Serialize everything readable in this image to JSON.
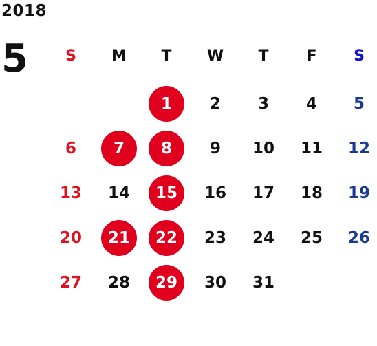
{
  "calendar": {
    "year": "2018",
    "month": "5",
    "weekday_headers": [
      "S",
      "M",
      "T",
      "W",
      "T",
      "F",
      "S"
    ],
    "colors": {
      "sunday": "#e0101e",
      "saturday": "#1a3a8f",
      "saturday_header": "#1010d0",
      "weekday": "#111111",
      "holiday_circle": "#e0001e",
      "holiday_text": "#ffffff"
    },
    "weeks": [
      [
        null,
        null,
        {
          "day": "1",
          "holiday": true
        },
        {
          "day": "2"
        },
        {
          "day": "3"
        },
        {
          "day": "4"
        },
        {
          "day": "5"
        }
      ],
      [
        {
          "day": "6"
        },
        {
          "day": "7",
          "holiday": true
        },
        {
          "day": "8",
          "holiday": true
        },
        {
          "day": "9"
        },
        {
          "day": "10"
        },
        {
          "day": "11"
        },
        {
          "day": "12"
        }
      ],
      [
        {
          "day": "13"
        },
        {
          "day": "14"
        },
        {
          "day": "15",
          "holiday": true
        },
        {
          "day": "16"
        },
        {
          "day": "17"
        },
        {
          "day": "18"
        },
        {
          "day": "19"
        }
      ],
      [
        {
          "day": "20"
        },
        {
          "day": "21",
          "holiday": true
        },
        {
          "day": "22",
          "holiday": true
        },
        {
          "day": "23"
        },
        {
          "day": "24"
        },
        {
          "day": "25"
        },
        {
          "day": "26"
        }
      ],
      [
        {
          "day": "27"
        },
        {
          "day": "28"
        },
        {
          "day": "29",
          "holiday": true
        },
        {
          "day": "30"
        },
        {
          "day": "31"
        },
        null,
        null
      ]
    ]
  }
}
